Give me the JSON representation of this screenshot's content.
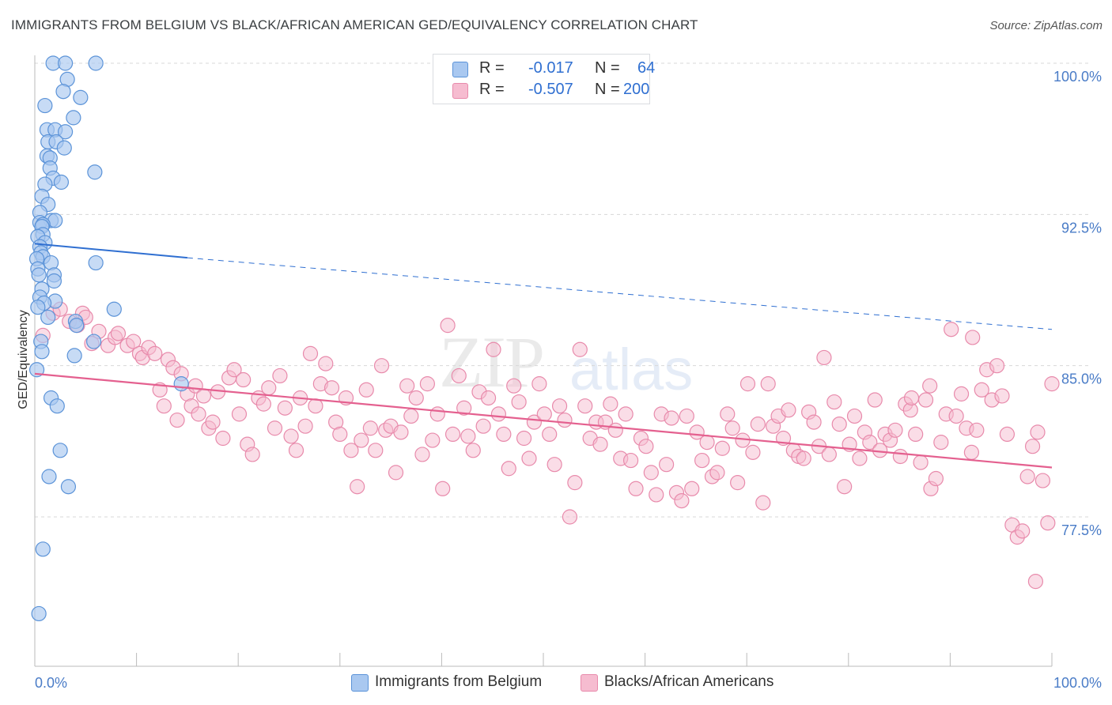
{
  "title": "IMMIGRANTS FROM BELGIUM VS BLACK/AFRICAN AMERICAN GED/EQUIVALENCY CORRELATION CHART",
  "source": "Source: ZipAtlas.com",
  "watermark": {
    "zip": "ZIP",
    "atlas": "atlas"
  },
  "legend": {
    "r_label": "R =",
    "n_label": "N =",
    "series1": {
      "r": "-0.017",
      "n": "64"
    },
    "series2": {
      "r": "-0.507",
      "n": "200"
    }
  },
  "colors": {
    "blue_fill": "#a9c8f0",
    "blue_stroke": "#5b93d8",
    "blue_line": "#2f6fd1",
    "pink_fill": "#f6bcd0",
    "pink_stroke": "#e88aab",
    "pink_line": "#e4608f",
    "grid": "#d8d8d8",
    "tick": "#4a7cc7"
  },
  "chart_data": {
    "type": "scatter",
    "title": "IMMIGRANTS FROM BELGIUM VS BLACK/AFRICAN AMERICAN GED/EQUIVALENCY CORRELATION CHART",
    "xlabel": "",
    "ylabel": "GED/Equivalency",
    "xlim": [
      0,
      100
    ],
    "ylim": [
      70.5,
      101.5
    ],
    "y_ticks": [
      {
        "v": 100,
        "label": "100.0%"
      },
      {
        "v": 92.5,
        "label": "92.5%"
      },
      {
        "v": 85,
        "label": "85.0%"
      },
      {
        "v": 77.5,
        "label": "77.5%"
      }
    ],
    "x_ticks": [
      {
        "v": 0,
        "label": "0.0%"
      },
      {
        "v": 100,
        "label": "100.0%"
      }
    ],
    "x_minor_ticks": [
      10,
      20,
      30,
      40,
      50,
      60,
      70,
      80,
      90,
      100
    ],
    "grid": true,
    "legend_position": "bottom",
    "series": [
      {
        "name": "Immigrants from Belgium",
        "color": "#a9c8f0",
        "trend": {
          "x0": 0,
          "y0": 91.05,
          "x1": 15,
          "y1": 90.35,
          "dash_to_x": 100,
          "dash_to_y": 86.8
        },
        "points": [
          [
            1.8,
            100
          ],
          [
            3.0,
            100
          ],
          [
            6.0,
            100
          ],
          [
            3.2,
            99.2
          ],
          [
            2.8,
            98.6
          ],
          [
            4.5,
            98.3
          ],
          [
            1.0,
            97.9
          ],
          [
            3.8,
            97.3
          ],
          [
            1.2,
            96.7
          ],
          [
            2.0,
            96.7
          ],
          [
            3.0,
            96.6
          ],
          [
            1.3,
            96.1
          ],
          [
            2.1,
            96.1
          ],
          [
            2.9,
            95.8
          ],
          [
            1.2,
            95.4
          ],
          [
            1.5,
            95.3
          ],
          [
            1.5,
            94.8
          ],
          [
            5.9,
            94.6
          ],
          [
            1.8,
            94.3
          ],
          [
            2.6,
            94.1
          ],
          [
            1.0,
            94.0
          ],
          [
            0.7,
            93.4
          ],
          [
            1.3,
            93.0
          ],
          [
            0.5,
            92.6
          ],
          [
            1.6,
            92.2
          ],
          [
            2.0,
            92.2
          ],
          [
            0.5,
            92.1
          ],
          [
            0.8,
            92.0
          ],
          [
            0.7,
            91.9
          ],
          [
            0.8,
            91.5
          ],
          [
            0.3,
            91.4
          ],
          [
            1.0,
            91.1
          ],
          [
            0.5,
            90.9
          ],
          [
            0.6,
            90.6
          ],
          [
            0.8,
            90.4
          ],
          [
            0.2,
            90.3
          ],
          [
            1.6,
            90.1
          ],
          [
            6.0,
            90.1
          ],
          [
            0.3,
            89.8
          ],
          [
            0.4,
            89.5
          ],
          [
            1.9,
            89.5
          ],
          [
            1.9,
            89.2
          ],
          [
            0.7,
            88.8
          ],
          [
            0.5,
            88.4
          ],
          [
            2.0,
            88.2
          ],
          [
            0.9,
            88.1
          ],
          [
            0.3,
            87.9
          ],
          [
            7.8,
            87.8
          ],
          [
            1.3,
            87.4
          ],
          [
            4.0,
            87.2
          ],
          [
            4.1,
            87.0
          ],
          [
            0.6,
            86.2
          ],
          [
            5.8,
            86.2
          ],
          [
            0.7,
            85.7
          ],
          [
            3.9,
            85.5
          ],
          [
            0.2,
            84.8
          ],
          [
            14.4,
            84.1
          ],
          [
            1.6,
            83.4
          ],
          [
            2.2,
            83.0
          ],
          [
            2.5,
            80.8
          ],
          [
            1.4,
            79.5
          ],
          [
            3.3,
            79.0
          ],
          [
            0.8,
            75.9
          ],
          [
            0.4,
            72.7
          ]
        ]
      },
      {
        "name": "Blacks/African Americans",
        "color": "#f6bcd0",
        "trend": {
          "x0": 0,
          "y0": 84.6,
          "x1": 100,
          "y1": 79.95
        },
        "points": [
          [
            0.8,
            86.5
          ],
          [
            1.8,
            87.6
          ],
          [
            2.5,
            87.8
          ],
          [
            3.4,
            87.2
          ],
          [
            4.2,
            87.0
          ],
          [
            4.7,
            87.6
          ],
          [
            5.0,
            87.4
          ],
          [
            5.6,
            86.1
          ],
          [
            6.3,
            86.7
          ],
          [
            7.2,
            86.0
          ],
          [
            7.9,
            86.4
          ],
          [
            8.2,
            86.6
          ],
          [
            9.1,
            86.0
          ],
          [
            9.7,
            86.2
          ],
          [
            10.3,
            85.6
          ],
          [
            10.6,
            85.4
          ],
          [
            11.2,
            85.9
          ],
          [
            11.8,
            85.6
          ],
          [
            12.3,
            83.8
          ],
          [
            12.7,
            83.0
          ],
          [
            13.1,
            85.3
          ],
          [
            13.6,
            84.9
          ],
          [
            14.0,
            82.3
          ],
          [
            14.4,
            84.6
          ],
          [
            15.0,
            83.6
          ],
          [
            15.4,
            83.0
          ],
          [
            15.8,
            84.0
          ],
          [
            16.1,
            82.6
          ],
          [
            16.6,
            83.5
          ],
          [
            17.1,
            81.9
          ],
          [
            17.5,
            82.2
          ],
          [
            18.0,
            83.7
          ],
          [
            18.5,
            81.4
          ],
          [
            19.1,
            84.4
          ],
          [
            19.6,
            84.8
          ],
          [
            20.1,
            82.6
          ],
          [
            20.5,
            84.3
          ],
          [
            20.9,
            81.1
          ],
          [
            21.4,
            80.6
          ],
          [
            22.0,
            83.4
          ],
          [
            22.5,
            83.1
          ],
          [
            23.0,
            83.9
          ],
          [
            23.6,
            81.9
          ],
          [
            24.1,
            84.5
          ],
          [
            24.6,
            82.9
          ],
          [
            25.2,
            81.5
          ],
          [
            25.7,
            80.8
          ],
          [
            26.1,
            83.4
          ],
          [
            26.6,
            82.0
          ],
          [
            27.1,
            85.6
          ],
          [
            27.6,
            83.0
          ],
          [
            28.1,
            84.1
          ],
          [
            28.6,
            85.1
          ],
          [
            29.2,
            83.9
          ],
          [
            29.6,
            82.2
          ],
          [
            30.0,
            81.6
          ],
          [
            30.6,
            83.4
          ],
          [
            31.1,
            80.8
          ],
          [
            31.7,
            79.0
          ],
          [
            32.1,
            81.3
          ],
          [
            32.6,
            83.8
          ],
          [
            33.0,
            81.9
          ],
          [
            33.5,
            80.8
          ],
          [
            34.1,
            85.0
          ],
          [
            34.5,
            81.8
          ],
          [
            35.0,
            82.0
          ],
          [
            35.5,
            79.7
          ],
          [
            36.0,
            81.7
          ],
          [
            36.6,
            84.0
          ],
          [
            37.0,
            82.5
          ],
          [
            37.5,
            83.4
          ],
          [
            38.1,
            80.6
          ],
          [
            38.6,
            84.1
          ],
          [
            39.1,
            81.3
          ],
          [
            39.6,
            82.6
          ],
          [
            40.1,
            78.9
          ],
          [
            40.6,
            87.0
          ],
          [
            41.1,
            81.6
          ],
          [
            41.7,
            84.5
          ],
          [
            42.2,
            82.9
          ],
          [
            42.6,
            81.5
          ],
          [
            43.1,
            80.8
          ],
          [
            43.7,
            83.7
          ],
          [
            44.1,
            82.0
          ],
          [
            44.6,
            83.4
          ],
          [
            45.1,
            85.8
          ],
          [
            45.6,
            82.6
          ],
          [
            46.1,
            81.6
          ],
          [
            46.6,
            79.9
          ],
          [
            47.1,
            84.0
          ],
          [
            47.6,
            83.2
          ],
          [
            48.1,
            81.4
          ],
          [
            48.6,
            80.4
          ],
          [
            49.1,
            82.2
          ],
          [
            49.6,
            84.1
          ],
          [
            50.1,
            82.6
          ],
          [
            50.6,
            81.6
          ],
          [
            51.1,
            80.1
          ],
          [
            51.6,
            83.0
          ],
          [
            52.1,
            82.3
          ],
          [
            52.6,
            77.5
          ],
          [
            53.1,
            79.2
          ],
          [
            53.6,
            85.8
          ],
          [
            54.1,
            83.0
          ],
          [
            54.6,
            81.4
          ],
          [
            55.2,
            82.2
          ],
          [
            55.6,
            81.1
          ],
          [
            56.1,
            82.2
          ],
          [
            56.6,
            83.1
          ],
          [
            57.1,
            81.8
          ],
          [
            57.6,
            80.4
          ],
          [
            58.1,
            82.6
          ],
          [
            58.6,
            80.3
          ],
          [
            59.1,
            78.9
          ],
          [
            59.6,
            81.4
          ],
          [
            60.1,
            81.0
          ],
          [
            60.6,
            79.7
          ],
          [
            61.1,
            78.6
          ],
          [
            61.6,
            82.6
          ],
          [
            62.1,
            80.1
          ],
          [
            62.6,
            82.4
          ],
          [
            63.1,
            78.7
          ],
          [
            63.6,
            78.3
          ],
          [
            64.1,
            82.5
          ],
          [
            64.6,
            78.9
          ],
          [
            65.1,
            81.7
          ],
          [
            65.6,
            80.3
          ],
          [
            66.1,
            81.2
          ],
          [
            66.6,
            79.5
          ],
          [
            67.1,
            79.7
          ],
          [
            67.6,
            80.9
          ],
          [
            68.1,
            82.6
          ],
          [
            68.6,
            81.9
          ],
          [
            69.1,
            79.2
          ],
          [
            69.6,
            81.3
          ],
          [
            70.1,
            84.1
          ],
          [
            70.6,
            80.7
          ],
          [
            71.1,
            82.1
          ],
          [
            71.6,
            78.2
          ],
          [
            72.1,
            84.1
          ],
          [
            72.6,
            82.0
          ],
          [
            73.1,
            82.5
          ],
          [
            73.6,
            81.4
          ],
          [
            74.1,
            82.8
          ],
          [
            74.6,
            80.8
          ],
          [
            75.1,
            80.5
          ],
          [
            75.6,
            80.4
          ],
          [
            76.1,
            82.7
          ],
          [
            76.6,
            82.2
          ],
          [
            77.1,
            81.0
          ],
          [
            77.6,
            85.4
          ],
          [
            78.1,
            80.6
          ],
          [
            78.6,
            83.2
          ],
          [
            79.1,
            82.1
          ],
          [
            79.6,
            79.0
          ],
          [
            80.1,
            81.1
          ],
          [
            80.6,
            82.5
          ],
          [
            81.1,
            80.4
          ],
          [
            81.6,
            81.7
          ],
          [
            82.1,
            81.2
          ],
          [
            82.6,
            83.3
          ],
          [
            83.1,
            80.8
          ],
          [
            83.6,
            81.6
          ],
          [
            84.1,
            81.3
          ],
          [
            84.6,
            81.8
          ],
          [
            85.1,
            80.5
          ],
          [
            85.6,
            83.1
          ],
          [
            86.1,
            82.8
          ],
          [
            86.6,
            81.6
          ],
          [
            87.1,
            80.2
          ],
          [
            87.6,
            83.3
          ],
          [
            88.1,
            78.9
          ],
          [
            88.6,
            79.4
          ],
          [
            89.1,
            81.2
          ],
          [
            89.6,
            82.6
          ],
          [
            90.1,
            86.8
          ],
          [
            90.6,
            82.5
          ],
          [
            91.1,
            83.6
          ],
          [
            91.6,
            81.9
          ],
          [
            92.1,
            80.7
          ],
          [
            92.6,
            81.8
          ],
          [
            93.1,
            83.8
          ],
          [
            93.6,
            84.8
          ],
          [
            94.1,
            83.3
          ],
          [
            94.6,
            85.0
          ],
          [
            95.1,
            83.5
          ],
          [
            95.6,
            81.6
          ],
          [
            96.1,
            77.1
          ],
          [
            96.6,
            76.5
          ],
          [
            97.1,
            76.8
          ],
          [
            97.6,
            79.5
          ],
          [
            98.1,
            81.0
          ],
          [
            98.6,
            81.7
          ],
          [
            99.1,
            79.3
          ],
          [
            99.6,
            77.2
          ],
          [
            100.0,
            84.1
          ],
          [
            92.2,
            86.4
          ],
          [
            98.4,
            74.3
          ],
          [
            88.0,
            84.0
          ],
          [
            86.2,
            83.4
          ]
        ]
      }
    ]
  }
}
